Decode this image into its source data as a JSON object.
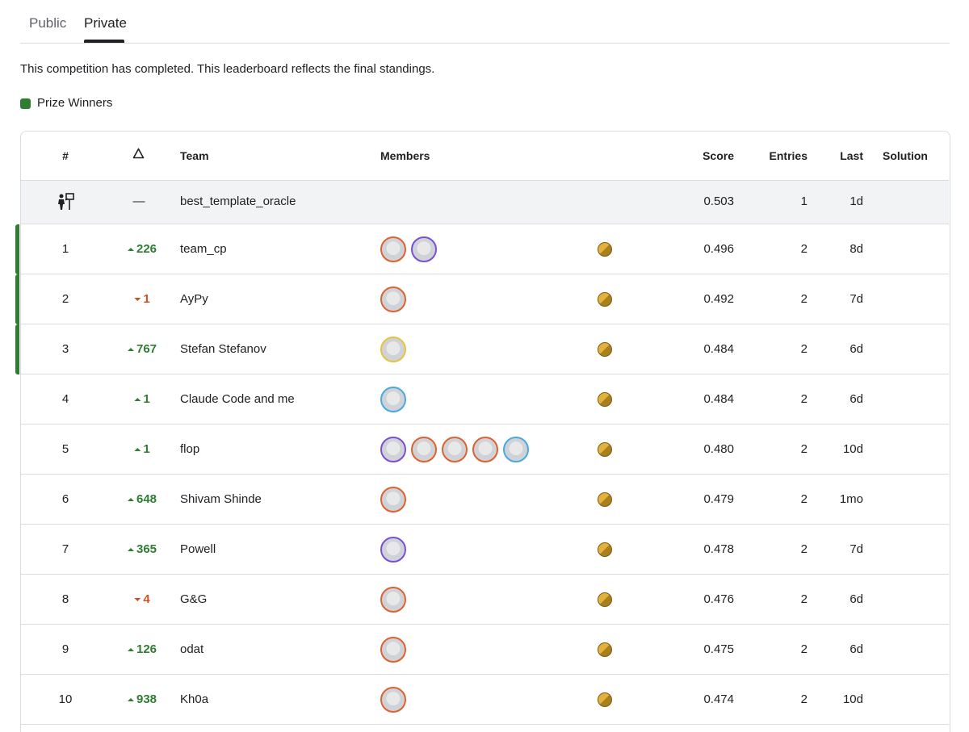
{
  "tabs": [
    "Public",
    "Private"
  ],
  "active_tab": 1,
  "notice": "This competition has completed. This leaderboard reflects the final standings.",
  "legend": {
    "label": "Prize Winners",
    "color": "#2e7d32"
  },
  "table": {
    "headers": {
      "rank": "#",
      "team": "Team",
      "members": "Members",
      "score": "Score",
      "entries": "Entries",
      "last": "Last",
      "solution": "Solution"
    },
    "benchmark": {
      "change": "—",
      "team": "best_template_oracle",
      "score": "0.503",
      "entries": 1,
      "last": "1d"
    },
    "rows": [
      {
        "rank": 1,
        "dir": "up",
        "change": 226,
        "team": "team_cp",
        "members": [
          "#e0602e",
          "#7a4fd6"
        ],
        "score": "0.496",
        "entries": 2,
        "last": "8d",
        "prize": true
      },
      {
        "rank": 2,
        "dir": "down",
        "change": 1,
        "team": "AyPy",
        "members": [
          "#e0602e"
        ],
        "score": "0.492",
        "entries": 2,
        "last": "7d",
        "prize": true
      },
      {
        "rank": 3,
        "dir": "up",
        "change": 767,
        "team": "Stefan Stefanov",
        "members": [
          "#e8c33a"
        ],
        "score": "0.484",
        "entries": 2,
        "last": "6d",
        "prize": true
      },
      {
        "rank": 4,
        "dir": "up",
        "change": 1,
        "team": "Claude Code and me",
        "members": [
          "#4aa8e0"
        ],
        "score": "0.484",
        "entries": 2,
        "last": "6d",
        "prize": false
      },
      {
        "rank": 5,
        "dir": "up",
        "change": 1,
        "team": "flop",
        "members": [
          "#7a4fd6",
          "#e0602e",
          "#e0602e",
          "#e0602e",
          "#4aa8e0"
        ],
        "score": "0.480",
        "entries": 2,
        "last": "10d",
        "prize": false
      },
      {
        "rank": 6,
        "dir": "up",
        "change": 648,
        "team": "Shivam Shinde",
        "members": [
          "#e0602e"
        ],
        "score": "0.479",
        "entries": 2,
        "last": "1mo",
        "prize": false
      },
      {
        "rank": 7,
        "dir": "up",
        "change": 365,
        "team": "Powell",
        "members": [
          "#7a4fd6"
        ],
        "score": "0.478",
        "entries": 2,
        "last": "7d",
        "prize": false
      },
      {
        "rank": 8,
        "dir": "down",
        "change": 4,
        "team": "G&G",
        "members": [
          "#e0602e"
        ],
        "score": "0.476",
        "entries": 2,
        "last": "6d",
        "prize": false
      },
      {
        "rank": 9,
        "dir": "up",
        "change": 126,
        "team": "odat",
        "members": [
          "#e0602e"
        ],
        "score": "0.475",
        "entries": 2,
        "last": "6d",
        "prize": false
      },
      {
        "rank": 10,
        "dir": "up",
        "change": 938,
        "team": "Kh0a",
        "members": [
          "#e0602e"
        ],
        "score": "0.474",
        "entries": 2,
        "last": "10d",
        "prize": false
      }
    ]
  }
}
